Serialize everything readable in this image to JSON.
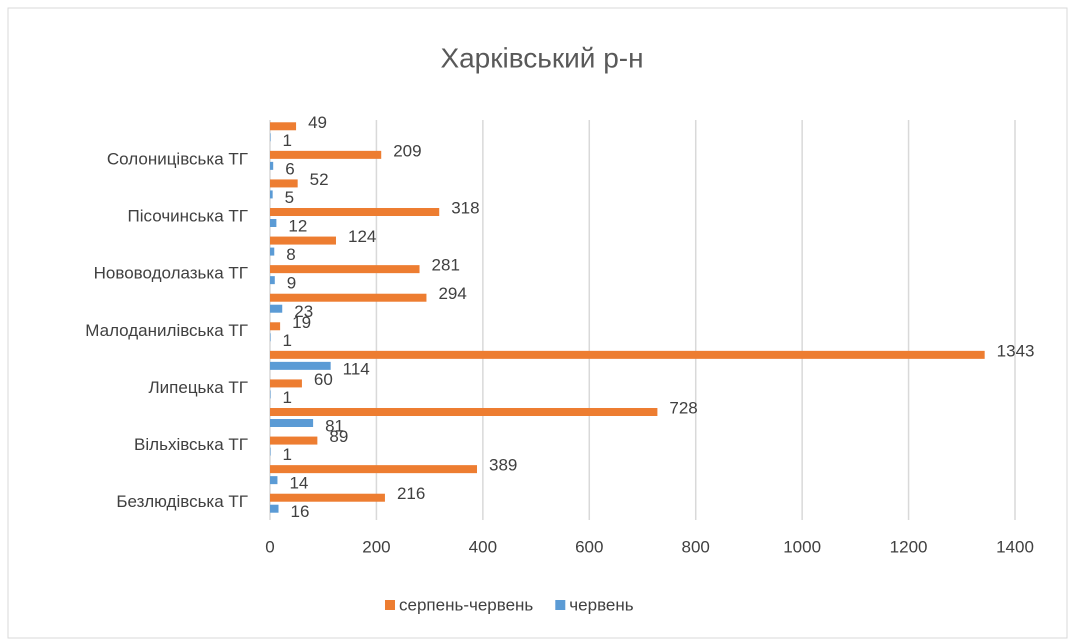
{
  "chart_data": {
    "type": "hbar",
    "title": "Харківський р-н",
    "categories": [
      "Безлюдівська ТГ",
      null,
      "Вільхівська ТГ",
      null,
      "Липецька ТГ",
      null,
      "Малоданилівська ТГ",
      null,
      "Нововодолазька ТГ",
      null,
      "Пісочинська ТГ",
      null,
      "Солоницівська ТГ",
      null
    ],
    "series": [
      {
        "name": "серпень-червень",
        "color": "#ed7d31",
        "values": [
          216,
          389,
          89,
          728,
          60,
          1343,
          19,
          294,
          281,
          124,
          318,
          52,
          209,
          49
        ]
      },
      {
        "name": "червень",
        "color": "#5b9bd5",
        "values": [
          16,
          14,
          1,
          81,
          1,
          114,
          1,
          23,
          9,
          8,
          12,
          5,
          6,
          1
        ]
      }
    ],
    "xlim": [
      0,
      1400
    ],
    "xticks": [
      0,
      200,
      400,
      600,
      800,
      1000,
      1200,
      1400
    ],
    "grid": true,
    "legend": "bottom"
  }
}
